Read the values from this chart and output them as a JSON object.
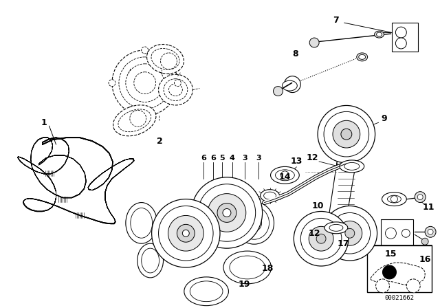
{
  "background_color": "#ffffff",
  "diagram_number": "00021662",
  "fig_width": 6.4,
  "fig_height": 4.48,
  "dpi": 100,
  "belt_color": "#000000",
  "line_color": "#000000",
  "part_color": "#000000"
}
